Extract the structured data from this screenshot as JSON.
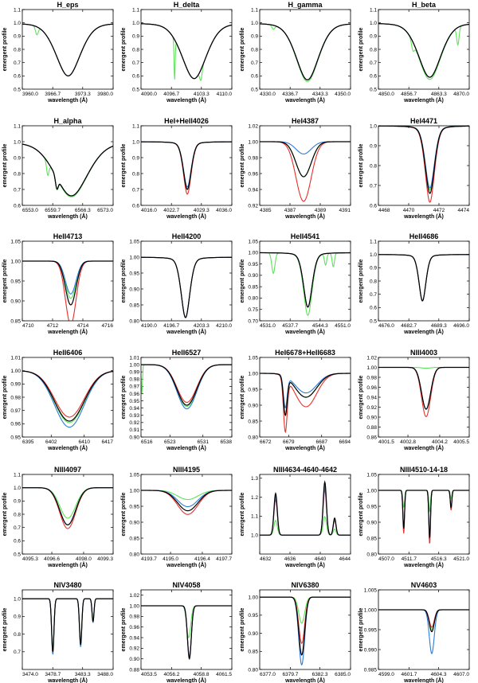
{
  "figure": {
    "series_colors": {
      "black": "#000000",
      "blue": "#2b7bd8",
      "red": "#e8302a",
      "green": "#5fe35a"
    },
    "xlabel": "wavelength (Å)",
    "ylabel": "emergent profile"
  },
  "chart_data": [
    {
      "type": "line",
      "title": "H_eps",
      "xlim": [
        3960,
        3980
      ],
      "xticks": [
        "3960.0",
        "3966.7",
        "3973.3",
        "3980.0"
      ],
      "ylim": [
        0.5,
        1.1
      ],
      "yticks": [
        "0.5",
        "0.6",
        "0.7",
        "0.8",
        "0.9",
        "1.0",
        "1.1"
      ],
      "lines": [
        {
          "center": 3970.1,
          "depth": 0.4,
          "width": 2.8,
          "shape": "broad"
        }
      ],
      "series": {
        "black": 1.0,
        "blue": 1.0,
        "red": 1.0,
        "green": 1.0
      },
      "extras": [
        {
          "series": "green",
          "center": 3963.2,
          "depth": 0.06,
          "width": 0.3
        }
      ]
    },
    {
      "type": "line",
      "title": "H_delta",
      "xlim": [
        4090,
        4110
      ],
      "xticks": [
        "4090.0",
        "4096.7",
        "4103.3",
        "4110.0"
      ],
      "ylim": [
        0.5,
        1.1
      ],
      "yticks": [
        "0.5",
        "0.6",
        "0.7",
        "0.8",
        "0.9",
        "1.0",
        "1.1"
      ],
      "lines": [
        {
          "center": 4101.7,
          "depth": 0.42,
          "width": 2.8,
          "shape": "broad"
        }
      ],
      "series": {
        "black": 1.0,
        "blue": 1.0,
        "red": 1.0,
        "green": 1.0
      },
      "extras": [
        {
          "series": "green",
          "center": 4097.4,
          "depth": 0.3,
          "width": 0.12
        },
        {
          "series": "green",
          "center": 4103.2,
          "depth": 0.08,
          "width": 0.25
        }
      ]
    },
    {
      "type": "line",
      "title": "H_gamma",
      "xlim": [
        4330,
        4350
      ],
      "xticks": [
        "4330.0",
        "4336.7",
        "4343.3",
        "4350.0"
      ],
      "ylim": [
        0.5,
        1.1
      ],
      "yticks": [
        "0.5",
        "0.6",
        "0.7",
        "0.8",
        "0.9",
        "1.0",
        "1.1"
      ],
      "lines": [
        {
          "center": 4340.5,
          "depth": 0.43,
          "width": 2.6,
          "shape": "broad"
        }
      ],
      "series": {
        "black": 1.0,
        "blue": 1.0,
        "red": 1.0,
        "green": 1.03
      },
      "extras": [
        {
          "series": "green",
          "center": 4333.0,
          "depth": 0.03,
          "width": 0.3
        }
      ]
    },
    {
      "type": "line",
      "title": "H_beta",
      "xlim": [
        4850,
        4870
      ],
      "xticks": [
        "4850.0",
        "4856.7",
        "4863.3",
        "4870.0"
      ],
      "ylim": [
        0.5,
        1.1
      ],
      "yticks": [
        "0.5",
        "0.6",
        "0.7",
        "0.8",
        "0.9",
        "1.0",
        "1.1"
      ],
      "lines": [
        {
          "center": 4861.3,
          "depth": 0.41,
          "width": 2.6,
          "shape": "broad"
        }
      ],
      "series": {
        "black": 1.0,
        "blue": 1.0,
        "red": 1.0,
        "green": 1.04
      },
      "extras": [
        {
          "series": "green",
          "center": 4867.5,
          "depth": 0.13,
          "width": 0.25
        },
        {
          "series": "green",
          "center": 4857.6,
          "depth": 0.06,
          "width": 0.3
        }
      ]
    },
    {
      "type": "line",
      "title": "H_alpha",
      "xlim": [
        6553,
        6573
      ],
      "xticks": [
        "6553.0",
        "6559.7",
        "6566.3",
        "6573.0"
      ],
      "ylim": [
        0.6,
        1.1
      ],
      "yticks": [
        "0.6",
        "0.7",
        "0.8",
        "0.9",
        "1.0",
        "1.1"
      ],
      "lines": [
        {
          "center": 6563.8,
          "depth": 0.34,
          "width": 3.8,
          "shape": "broad"
        }
      ],
      "series": {
        "black": 1.0,
        "blue": 1.0,
        "red": 1.0,
        "green": 1.02
      },
      "extras": [
        {
          "series": "all",
          "center": 6560.6,
          "depth": 0.07,
          "width": 0.3
        },
        {
          "series": "green",
          "center": 6558.6,
          "depth": 0.08,
          "width": 0.25
        }
      ]
    },
    {
      "type": "line",
      "title": "HeI+HeII4026",
      "xlim": [
        4016,
        4036
      ],
      "xticks": [
        "4016.0",
        "4022.7",
        "4029.3",
        "4036.0"
      ],
      "ylim": [
        0.6,
        1.1
      ],
      "yticks": [
        "0.6",
        "0.7",
        "0.8",
        "0.9",
        "1.0",
        "1.1"
      ],
      "lines": [
        {
          "center": 4026.2,
          "depth": 0.3,
          "width": 0.9,
          "shape": "broad"
        }
      ],
      "series": {
        "black": 1.0,
        "blue": 0.95,
        "red": 1.1,
        "green": 1.0
      },
      "extras": []
    },
    {
      "type": "line",
      "title": "HeI4387",
      "xlim": [
        4385,
        4391
      ],
      "xticks": [
        "4385",
        "4387",
        "4389",
        "4391"
      ],
      "ylim": [
        0.92,
        1.02
      ],
      "yticks": [
        "0.92",
        "0.94",
        "0.96",
        "0.98",
        "1.00",
        "1.02"
      ],
      "lines": [
        {
          "center": 4387.9,
          "depth": 0.044,
          "width": 0.5,
          "shape": "gauss"
        }
      ],
      "series": {
        "black": 1.0,
        "blue": 0.35,
        "red": 1.7,
        "green": 1.0
      },
      "extras": []
    },
    {
      "type": "line",
      "title": "HeI4471",
      "xlim": [
        4468,
        4474
      ],
      "xticks": [
        "4468",
        "4470",
        "4472",
        "4474"
      ],
      "ylim": [
        0.6,
        1.0
      ],
      "yticks": [
        "0.6",
        "0.7",
        "0.8",
        "0.9",
        "1.0"
      ],
      "lines": [
        {
          "center": 4471.4,
          "depth": 0.34,
          "width": 0.32,
          "shape": "broad"
        }
      ],
      "series": {
        "black": 1.0,
        "blue": 0.92,
        "red": 1.13,
        "green": 0.95
      },
      "extras": []
    },
    {
      "type": "line",
      "title": "HeII4713",
      "xlim": [
        4710,
        4716
      ],
      "xticks": [
        "4710",
        "4712",
        "4714",
        "4716"
      ],
      "ylim": [
        0.85,
        1.05
      ],
      "yticks": [
        "0.85",
        "0.90",
        "0.95",
        "1.00",
        "1.05"
      ],
      "lines": [
        {
          "center": 4713.2,
          "depth": 0.11,
          "width": 0.35,
          "shape": "gauss"
        }
      ],
      "series": {
        "black": 1.0,
        "blue": 0.75,
        "red": 1.45,
        "green": 0.85
      },
      "extras": []
    },
    {
      "type": "line",
      "title": "HeII4200",
      "xlim": [
        4190,
        4210
      ],
      "xticks": [
        "4190.0",
        "4196.7",
        "4203.3",
        "4210.0"
      ],
      "ylim": [
        0.8,
        1.05
      ],
      "yticks": [
        "0.80",
        "0.85",
        "0.90",
        "0.95",
        "1.00",
        "1.05"
      ],
      "lines": [
        {
          "center": 4199.8,
          "depth": 0.19,
          "width": 1.0,
          "shape": "broad"
        }
      ],
      "series": {
        "black": 1.0,
        "blue": 1.0,
        "red": 1.0,
        "green": 1.0
      },
      "extras": []
    },
    {
      "type": "line",
      "title": "HeII4541",
      "xlim": [
        4531,
        4551
      ],
      "xticks": [
        "4531.0",
        "4537.7",
        "4544.3",
        "4551.0"
      ],
      "ylim": [
        0.7,
        1.05
      ],
      "yticks": [
        "0.70",
        "0.75",
        "0.80",
        "0.85",
        "0.90",
        "0.95",
        "1.00",
        "1.05"
      ],
      "lines": [
        {
          "center": 4541.6,
          "depth": 0.24,
          "width": 1.0,
          "shape": "broad"
        }
      ],
      "series": {
        "black": 1.0,
        "blue": 1.0,
        "red": 1.0,
        "green": 1.15
      },
      "extras": [
        {
          "series": "green",
          "center": 4534.0,
          "depth": 0.09,
          "width": 0.35
        },
        {
          "series": "green",
          "center": 4545.5,
          "depth": 0.05,
          "width": 0.25
        },
        {
          "series": "green",
          "center": 4547.2,
          "depth": 0.06,
          "width": 0.25
        }
      ]
    },
    {
      "type": "line",
      "title": "HeII4686",
      "xlim": [
        4676,
        4696
      ],
      "xticks": [
        "4676.0",
        "4682.7",
        "4689.3",
        "4696.0"
      ],
      "ylim": [
        0.5,
        1.1
      ],
      "yticks": [
        "0.5",
        "0.6",
        "0.7",
        "0.8",
        "0.9",
        "1.0",
        "1.1"
      ],
      "lines": [
        {
          "center": 4685.7,
          "depth": 0.35,
          "width": 0.8,
          "shape": "broad"
        }
      ],
      "series": {
        "black": 1.0,
        "blue": 1.0,
        "red": 1.0,
        "green": 1.0
      },
      "extras": []
    },
    {
      "type": "line",
      "title": "HeII6406",
      "xlim": [
        6395,
        6417
      ],
      "xticks": [
        "6395",
        "6402",
        "6410",
        "6417"
      ],
      "ylim": [
        0.95,
        1.01
      ],
      "yticks": [
        "0.95",
        "0.96",
        "0.97",
        "0.98",
        "0.99",
        "1.00",
        "1.01"
      ],
      "lines": [
        {
          "center": 6406.4,
          "depth": 0.038,
          "width": 3.6,
          "shape": "gauss"
        }
      ],
      "series": {
        "black": 1.0,
        "blue": 1.12,
        "red": 0.92,
        "green": 1.03
      },
      "extras": []
    },
    {
      "type": "line",
      "title": "HeII6527",
      "xlim": [
        6516,
        6538
      ],
      "xticks": [
        "6516",
        "6523",
        "6531",
        "6538"
      ],
      "ylim": [
        0.9,
        1.01
      ],
      "yticks": [
        "0.90",
        "0.91",
        "0.92",
        "0.93",
        "0.94",
        "0.95",
        "0.96",
        "0.97",
        "0.98",
        "0.99",
        "1.00",
        "1.01"
      ],
      "lines": [
        {
          "center": 6527.1,
          "depth": 0.056,
          "width": 2.4,
          "shape": "gauss"
        }
      ],
      "series": {
        "black": 1.0,
        "blue": 1.09,
        "red": 0.93,
        "green": 1.03
      },
      "extras": [
        {
          "series": "green",
          "center": 6516.2,
          "depth": 0.04,
          "width": 0.15
        }
      ]
    },
    {
      "type": "line",
      "title": "HeI6678+HeII6683",
      "xlim": [
        6672,
        6694
      ],
      "xticks": [
        "6672",
        "6679",
        "6687",
        "6694"
      ],
      "ylim": [
        0.8,
        1.05
      ],
      "yticks": [
        "0.80",
        "0.85",
        "0.90",
        "0.95",
        "1.00",
        "1.05"
      ],
      "lines": [
        {
          "center": 6678.2,
          "depth": 0.12,
          "width": 0.45,
          "shape": "gauss"
        },
        {
          "center": 6683.2,
          "depth": 0.075,
          "width": 2.6,
          "shape": "gauss"
        }
      ],
      "series": {
        "black": 1.0,
        "blue": 0.82,
        "red": 1.4,
        "green": 1.0
      },
      "extras": []
    },
    {
      "type": "line",
      "title": "NIII4003",
      "xlim": [
        4001.5,
        4005.5
      ],
      "xticks": [
        "4001.5",
        "4002.8",
        "4004.2",
        "4005.5"
      ],
      "ylim": [
        0.86,
        1.02
      ],
      "yticks": [
        "0.86",
        "0.88",
        "0.90",
        "0.92",
        "0.94",
        "0.96",
        "0.98",
        "1.00",
        "1.02"
      ],
      "lines": [
        {
          "center": 4003.6,
          "depth": 0.084,
          "width": 0.2,
          "shape": "gauss"
        }
      ],
      "series": {
        "black": 1.0,
        "blue": 1.0,
        "red": 1.18,
        "green": 0.02
      },
      "extras": []
    },
    {
      "type": "line",
      "title": "NIII4097",
      "xlim": [
        4095.3,
        4099.3
      ],
      "xticks": [
        "4095.3",
        "4096.6",
        "4098.0",
        "4099.3"
      ],
      "ylim": [
        0.5,
        1.1
      ],
      "yticks": [
        "0.5",
        "0.6",
        "0.7",
        "0.8",
        "0.9",
        "1.0",
        "1.1"
      ],
      "lines": [
        {
          "center": 4097.3,
          "depth": 0.28,
          "width": 0.35,
          "shape": "gauss"
        }
      ],
      "series": {
        "black": 1.0,
        "blue": 1.0,
        "red": 1.1,
        "green": 0.82
      },
      "extras": []
    },
    {
      "type": "line",
      "title": "NIII4195",
      "xlim": [
        4193.7,
        4197.7
      ],
      "xticks": [
        "4193.7",
        "4195.0",
        "4196.4",
        "4197.7"
      ],
      "ylim": [
        0.8,
        1.05
      ],
      "yticks": [
        "0.80",
        "0.85",
        "0.90",
        "0.95",
        "1.00",
        "1.05"
      ],
      "lines": [
        {
          "center": 4195.76,
          "depth": 0.064,
          "width": 0.45,
          "shape": "gauss"
        }
      ],
      "series": {
        "black": 1.0,
        "blue": 0.8,
        "red": 1.18,
        "green": 0.45
      },
      "extras": []
    },
    {
      "type": "line",
      "title": "NIII4634-4640-4642",
      "xlim": [
        4632,
        4644
      ],
      "xticks": [
        "4632",
        "4636",
        "4640",
        "4644"
      ],
      "ylim": [
        0.9,
        1.32
      ],
      "yticks": [
        "1.0",
        "1.1",
        "1.2",
        "1.3"
      ],
      "lines": [
        {
          "center": 4634.1,
          "depth": -0.22,
          "width": 0.22,
          "shape": "gauss"
        },
        {
          "center": 4640.6,
          "depth": -0.28,
          "width": 0.22,
          "shape": "gauss"
        },
        {
          "center": 4641.9,
          "depth": -0.09,
          "width": 0.18,
          "shape": "gauss"
        }
      ],
      "series": {
        "black": 1.0,
        "blue": 0.92,
        "red": 0.85,
        "green": 0.35
      },
      "extras": []
    },
    {
      "type": "line",
      "title": "NIII4510-14-18",
      "xlim": [
        4507,
        4521
      ],
      "xticks": [
        "4507.0",
        "4511.7",
        "4516.3",
        "4521.0"
      ],
      "ylim": [
        0.8,
        1.05
      ],
      "yticks": [
        "0.80",
        "0.85",
        "0.90",
        "0.95",
        "1.00",
        "1.05"
      ],
      "lines": [
        {
          "center": 4510.9,
          "depth": 0.12,
          "width": 0.13,
          "shape": "gauss"
        },
        {
          "center": 4514.9,
          "depth": 0.15,
          "width": 0.13,
          "shape": "gauss"
        },
        {
          "center": 4518.2,
          "depth": 0.055,
          "width": 0.12,
          "shape": "gauss"
        }
      ],
      "series": {
        "black": 1.0,
        "blue": 1.0,
        "red": 1.13,
        "green": 0.45
      },
      "extras": []
    },
    {
      "type": "line",
      "title": "NIV3480",
      "xlim": [
        3474,
        3488
      ],
      "xticks": [
        "3474.0",
        "3478.7",
        "3483.3",
        "3488.0"
      ],
      "ylim": [
        0.6,
        1.05
      ],
      "yticks": [
        "0.7",
        "0.8",
        "0.9",
        "1.0"
      ],
      "lines": [
        {
          "center": 3478.7,
          "depth": 0.3,
          "width": 0.18,
          "shape": "gauss"
        },
        {
          "center": 3482.99,
          "depth": 0.26,
          "width": 0.18,
          "shape": "gauss"
        },
        {
          "center": 3484.9,
          "depth": 0.13,
          "width": 0.15,
          "shape": "gauss"
        }
      ],
      "series": {
        "black": 1.0,
        "blue": 1.05,
        "red": 1.0,
        "green": 0.92
      },
      "extras": []
    },
    {
      "type": "line",
      "title": "NIV4058",
      "xlim": [
        4053.5,
        4061.5
      ],
      "xticks": [
        "4053.5",
        "4056.2",
        "4058.8",
        "4061.5"
      ],
      "ylim": [
        0.88,
        1.03
      ],
      "yticks": [
        "0.88",
        "0.90",
        "0.92",
        "0.94",
        "0.96",
        "0.98",
        "1.00",
        "1.02"
      ],
      "lines": [
        {
          "center": 4057.76,
          "depth": 0.1,
          "width": 0.17,
          "shape": "gauss"
        }
      ],
      "series": {
        "black": 1.0,
        "blue": 0.97,
        "red": 0.96,
        "green": 0.0
      },
      "extras": [
        {
          "series": "green",
          "center": 4057.7,
          "depth": 0.06,
          "width": 0.18
        }
      ]
    },
    {
      "type": "line",
      "title": "NIV6380",
      "xlim": [
        6377,
        6385
      ],
      "xticks": [
        "6377.0",
        "6379.7",
        "6382.3",
        "6385.0"
      ],
      "ylim": [
        0.8,
        1.02
      ],
      "yticks": [
        "0.80",
        "0.85",
        "0.90",
        "0.95",
        "1.00"
      ],
      "lines": [
        {
          "center": 6380.7,
          "depth": 0.16,
          "width": 0.26,
          "shape": "gauss"
        }
      ],
      "series": {
        "black": 1.0,
        "blue": 1.17,
        "red": 0.8,
        "green": 0.45
      },
      "extras": []
    },
    {
      "type": "line",
      "title": "NV4603",
      "xlim": [
        4599,
        4607
      ],
      "xticks": [
        "4599.0",
        "4601.7",
        "4604.3",
        "4607.0"
      ],
      "ylim": [
        0.985,
        1.005
      ],
      "yticks": [
        "0.985",
        "0.990",
        "0.995",
        "1.000",
        "1.005"
      ],
      "lines": [
        {
          "center": 4603.7,
          "depth": 0.0055,
          "width": 0.22,
          "shape": "gauss"
        }
      ],
      "series": {
        "black": 1.0,
        "blue": 2.0,
        "red": 0.8,
        "green": 0.9
      },
      "extras": []
    }
  ]
}
